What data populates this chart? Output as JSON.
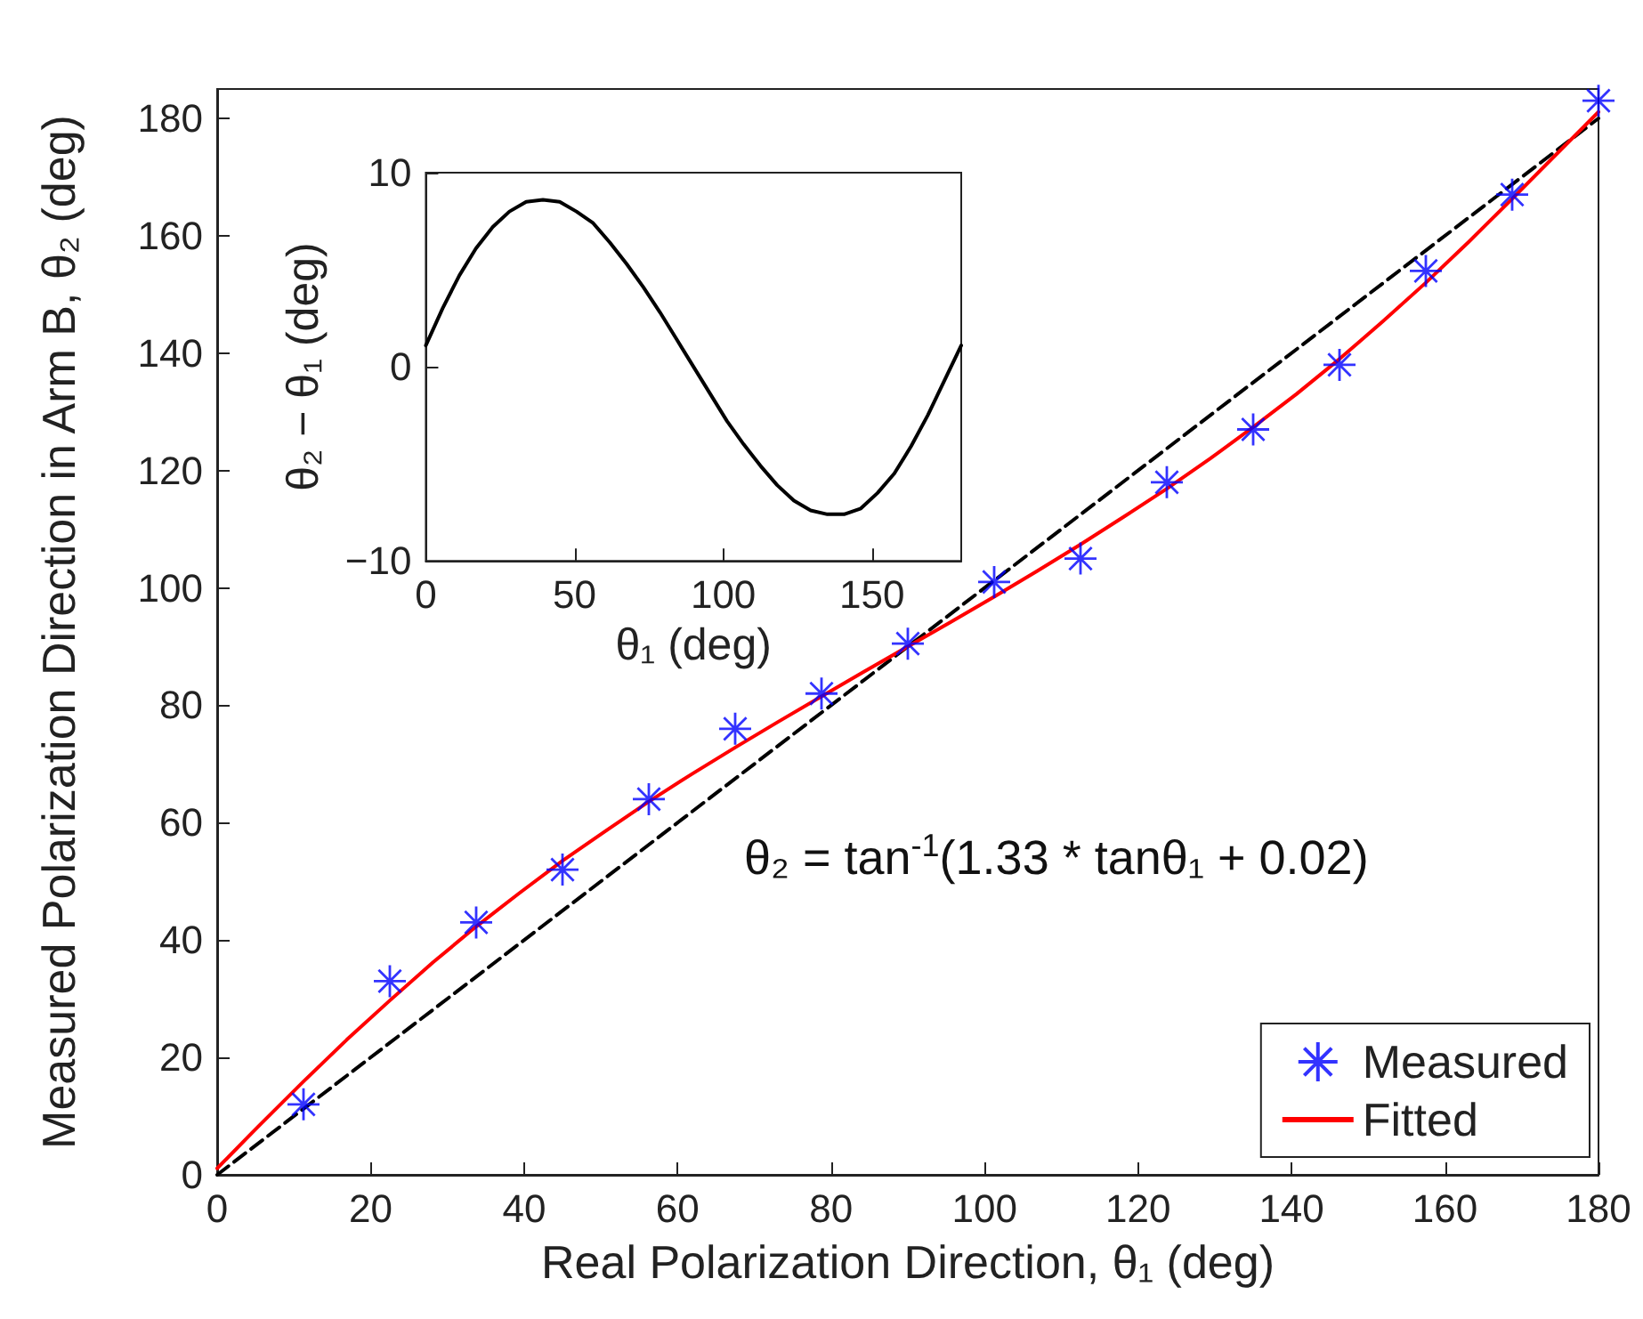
{
  "chart_data": [
    {
      "type": "line",
      "xlabel": "Real Polarization Direction, θ₁ (deg)",
      "ylabel": "Measured Polarization Direction in Arm B, θ₂ (deg)",
      "xlim": [
        0,
        180
      ],
      "xticks": [
        0,
        20,
        40,
        60,
        80,
        100,
        120,
        140,
        160,
        180
      ],
      "ylim": [
        0,
        185
      ],
      "yticks": [
        0,
        20,
        40,
        60,
        80,
        100,
        120,
        140,
        160,
        180
      ],
      "legend": "bottom right",
      "annotations": [
        "θ₂ = tan$^{-1}$(1.33 * tanθ₁ + 0.02)"
      ],
      "series": [
        {
          "color": "#000000",
          "line_style": "dashed",
          "marker": "none",
          "x": [
            0,
            180
          ],
          "values": [
            0,
            180
          ]
        },
        {
          "name": "Measured",
          "type": "scatter",
          "marker": "cross",
          "color": "#0000ff",
          "x": [
            11.25,
            22.5,
            33.75,
            45,
            56.25,
            67.5,
            78.75,
            90,
            101.25,
            112.5,
            123.75,
            135,
            146.25,
            157.5,
            168.75,
            180
          ],
          "values": [
            12,
            33,
            43,
            52,
            64,
            76,
            82,
            90.5,
            101,
            105,
            118,
            127,
            138,
            154,
            167,
            183
          ]
        },
        {
          "name": "Fitted",
          "color": "#ff0000",
          "line_style": "solid",
          "marker": "none",
          "x": [
            0,
            5.625,
            11.25,
            16.875,
            22.5,
            28.125,
            33.75,
            39.375,
            45,
            50.625,
            56.25,
            61.875,
            67.5,
            73.125,
            78.75,
            84.375,
            90,
            95.625,
            101.25,
            106.875,
            112.5,
            118.125,
            123.75,
            129.375,
            135,
            140.625,
            146.25,
            151.875,
            157.5,
            163.125,
            168.75,
            174.375,
            180
          ],
          "values": [
            1.1,
            8.6,
            15.9,
            23,
            29.7,
            36.2,
            42.3,
            48,
            53.5,
            58.6,
            63.6,
            68.3,
            72.8,
            77.2,
            81.5,
            85.8,
            90,
            94.2,
            98.5,
            102.9,
            107.4,
            112.1,
            116.9,
            122,
            127.4,
            133,
            139,
            145.4,
            152,
            159,
            166.3,
            173.7,
            181.1
          ]
        }
      ]
    },
    {
      "type": "line",
      "xlabel": "θ₁ (deg)",
      "ylabel": "θ₂ − θ₁ (deg)",
      "xlim": [
        0,
        180
      ],
      "xticks": [
        0,
        50,
        100,
        150
      ],
      "ylim": [
        -10,
        10
      ],
      "yticks": [
        {
          "value": -10,
          "label": "−10"
        },
        0,
        10
      ],
      "series": [
        {
          "color": "#000000",
          "line_style": "solid",
          "marker": "none",
          "x": [
            0,
            5.625,
            11.25,
            16.875,
            22.5,
            28.125,
            33.75,
            39.375,
            45,
            50.625,
            56.25,
            61.875,
            67.5,
            73.125,
            78.75,
            84.375,
            90,
            95.625,
            101.25,
            106.875,
            112.5,
            118.125,
            123.75,
            129.375,
            135,
            140.625,
            146.25,
            151.875,
            157.5,
            163.125,
            168.75,
            174.375,
            180
          ],
          "values": [
            1.1,
            3,
            4.7,
            6.1,
            7.2,
            8,
            8.5,
            8.6,
            8.5,
            8,
            7.4,
            6.4,
            5.3,
            4.1,
            2.8,
            1.4,
            0,
            -1.4,
            -2.8,
            -4,
            -5.1,
            -6.1,
            -6.9,
            -7.4,
            -7.6,
            -7.6,
            -7.3,
            -6.5,
            -5.5,
            -4.1,
            -2.5,
            -0.7,
            1.1
          ]
        }
      ]
    }
  ]
}
